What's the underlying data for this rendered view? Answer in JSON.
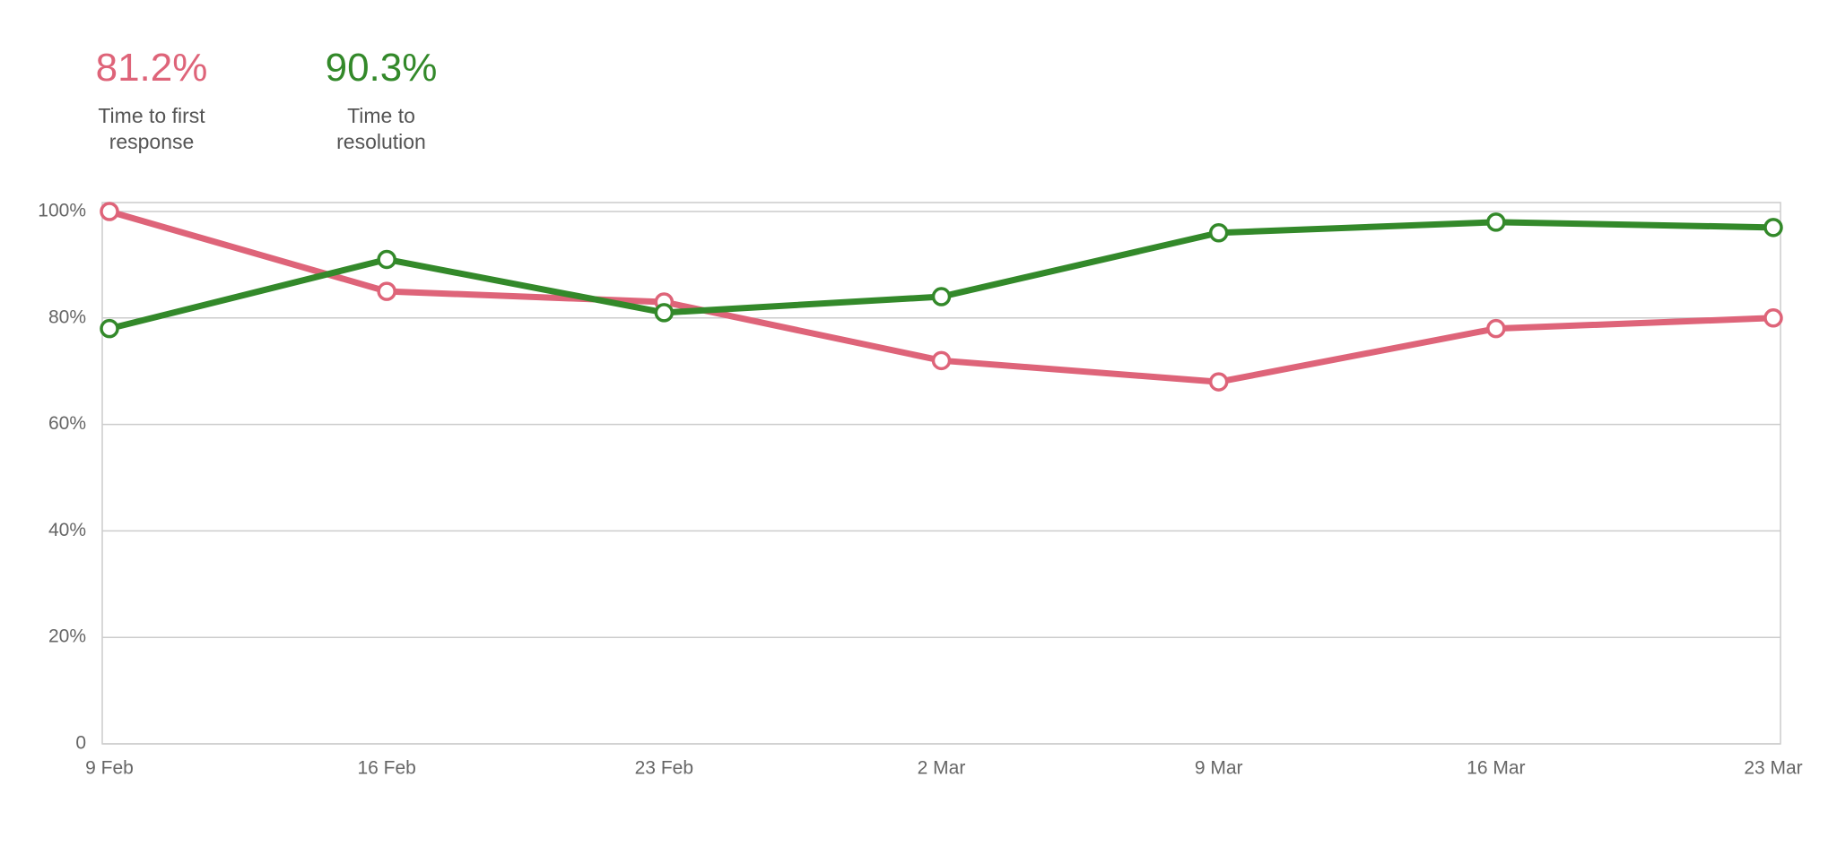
{
  "chart_data": {
    "type": "line",
    "x": [
      "9 Feb",
      "16 Feb",
      "23 Feb",
      "2 Mar",
      "9 Mar",
      "16 Mar",
      "23 Mar"
    ],
    "series": [
      {
        "name": "Time to first response",
        "summary": "81.2%",
        "color": "#de6479",
        "values": [
          100,
          85,
          83,
          72,
          68,
          78,
          80
        ]
      },
      {
        "name": "Time to resolution",
        "summary": "90.3%",
        "color": "#33892a",
        "values": [
          78,
          91,
          81,
          84,
          96,
          98,
          97
        ]
      }
    ],
    "ylim": [
      0,
      100
    ],
    "yticks": [
      0,
      {
        "value": 20,
        "label": "20%"
      },
      {
        "value": 40,
        "label": "40%"
      },
      {
        "value": 60,
        "label": "60%"
      },
      {
        "value": 80,
        "label": "80%"
      },
      {
        "value": 100,
        "label": "100%"
      }
    ],
    "grid": true
  }
}
